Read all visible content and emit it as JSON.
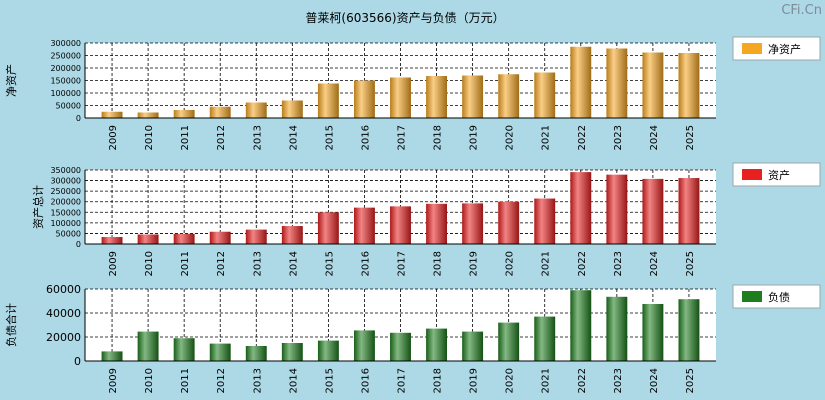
{
  "title": "普莱柯(603566)资产与负债（万元）",
  "watermark": "CFi.Cn",
  "chart_data": [
    {
      "type": "bar",
      "ylabel": "净资产",
      "legend": "净资产",
      "color": "#F5A623",
      "ylim": [
        0,
        300000
      ],
      "yticks": [
        0,
        50000,
        100000,
        150000,
        200000,
        250000,
        300000
      ],
      "categories": [
        "2009",
        "2010",
        "2011",
        "2012",
        "2013",
        "2014",
        "2015",
        "2016",
        "2017",
        "2018",
        "2019",
        "2020",
        "2021",
        "2022",
        "2023",
        "2024",
        "2025"
      ],
      "values": [
        25000,
        22000,
        32000,
        45000,
        62000,
        70000,
        138000,
        150000,
        162000,
        168000,
        170000,
        175000,
        182000,
        285000,
        278000,
        262000,
        260000
      ]
    },
    {
      "type": "bar",
      "ylabel": "资产总计",
      "legend": "资产",
      "color": "#E82020",
      "ylim": [
        0,
        350000
      ],
      "yticks": [
        0,
        50000,
        100000,
        150000,
        200000,
        250000,
        300000,
        350000
      ],
      "categories": [
        "2009",
        "2010",
        "2011",
        "2012",
        "2013",
        "2014",
        "2015",
        "2016",
        "2017",
        "2018",
        "2019",
        "2020",
        "2021",
        "2022",
        "2023",
        "2024",
        "2025"
      ],
      "values": [
        33000,
        45000,
        48000,
        58000,
        68000,
        85000,
        150000,
        172000,
        178000,
        190000,
        192000,
        200000,
        215000,
        340000,
        328000,
        308000,
        312000
      ]
    },
    {
      "type": "bar",
      "ylabel": "负债合计",
      "legend": "负债",
      "color": "#1E7D1E",
      "ylim": [
        0,
        60000
      ],
      "yticks": [
        0,
        20000,
        40000,
        60000
      ],
      "categories": [
        "2009",
        "2010",
        "2011",
        "2012",
        "2013",
        "2014",
        "2015",
        "2016",
        "2017",
        "2018",
        "2019",
        "2020",
        "2021",
        "2022",
        "2023",
        "2024",
        "2025"
      ],
      "values": [
        8000,
        24500,
        19000,
        14500,
        12500,
        15000,
        17000,
        25500,
        23500,
        27000,
        24500,
        32000,
        37000,
        59000,
        53500,
        47500,
        51500
      ]
    }
  ]
}
